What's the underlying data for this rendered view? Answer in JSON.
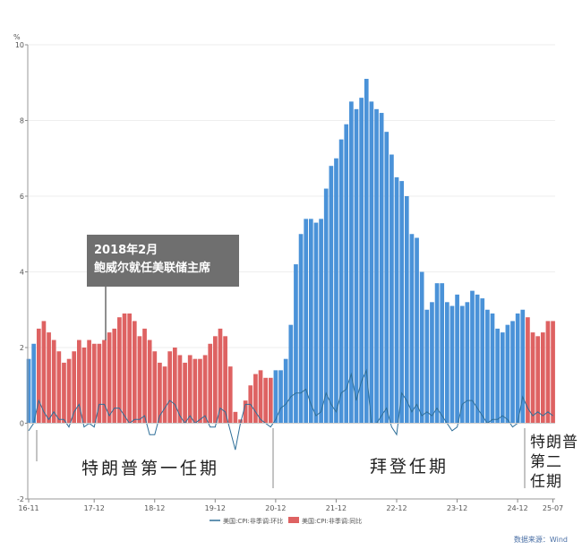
{
  "chart_data": {
    "type": "bar",
    "title": "",
    "ylabel": "%",
    "ylim": [
      -2,
      10
    ],
    "yticks": [
      -2,
      0,
      2,
      4,
      6,
      8,
      10
    ],
    "grid": true,
    "legend_placement": "bottom",
    "start_month": "2016-11",
    "x_tick_labels": [
      "16-11",
      "17-12",
      "18-12",
      "19-12",
      "20-12",
      "21-12",
      "22-12",
      "23-12",
      "24-12",
      "25-07"
    ],
    "x_tick_indices": [
      0,
      13,
      25,
      37,
      49,
      61,
      73,
      85,
      97,
      104
    ],
    "colors": {
      "biden": "#4a92d8",
      "trump": "#de6262",
      "line": "#2f6f99"
    },
    "series": [
      {
        "name": "美国:CPI:非季调:同比",
        "type": "bar",
        "values": [
          1.7,
          2.1,
          2.5,
          2.7,
          2.4,
          2.2,
          1.9,
          1.6,
          1.7,
          1.9,
          2.2,
          2.0,
          2.2,
          2.1,
          2.1,
          2.2,
          2.4,
          2.5,
          2.8,
          2.9,
          2.9,
          2.7,
          2.3,
          2.5,
          2.2,
          1.9,
          1.6,
          1.5,
          1.9,
          2.0,
          1.8,
          1.6,
          1.8,
          1.7,
          1.7,
          1.8,
          2.1,
          2.3,
          2.5,
          2.3,
          1.5,
          0.3,
          0.1,
          0.6,
          1.0,
          1.3,
          1.4,
          1.2,
          1.2,
          1.4,
          1.4,
          1.7,
          2.6,
          4.2,
          5.0,
          5.4,
          5.4,
          5.3,
          5.4,
          6.2,
          6.8,
          7.0,
          7.5,
          7.9,
          8.5,
          8.3,
          8.6,
          9.1,
          8.5,
          8.3,
          8.2,
          7.7,
          7.1,
          6.5,
          6.4,
          6.0,
          5.0,
          4.9,
          4.0,
          3.0,
          3.2,
          3.7,
          3.7,
          3.2,
          3.1,
          3.4,
          3.1,
          3.2,
          3.5,
          3.4,
          3.3,
          3.0,
          2.9,
          2.5,
          2.4,
          2.6,
          2.7,
          2.9,
          3.0,
          2.8,
          2.4,
          2.3,
          2.4,
          2.7,
          2.7
        ],
        "color_by_index": "blue for 2016-11..2016-12 and 2020-12..2025-01, red otherwise"
      },
      {
        "name": "美国:CPI:非季调:环比",
        "type": "line",
        "values": [
          -0.2,
          0.0,
          0.6,
          0.3,
          0.1,
          0.3,
          0.1,
          0.1,
          -0.1,
          0.3,
          0.5,
          -0.1,
          0.0,
          -0.1,
          0.5,
          0.5,
          0.2,
          0.4,
          0.4,
          0.2,
          0.0,
          0.1,
          0.1,
          0.2,
          -0.3,
          -0.3,
          0.2,
          0.4,
          0.6,
          0.5,
          0.2,
          0.0,
          0.2,
          0.0,
          0.1,
          0.2,
          -0.1,
          -0.1,
          0.4,
          0.3,
          -0.2,
          -0.7,
          0.0,
          0.5,
          0.5,
          0.3,
          0.1,
          0.0,
          -0.1,
          0.1,
          0.4,
          0.5,
          0.7,
          0.8,
          0.8,
          0.9,
          0.5,
          0.2,
          0.3,
          0.8,
          0.5,
          0.3,
          0.8,
          0.9,
          1.3,
          0.6,
          1.1,
          1.4,
          0.0,
          0.0,
          0.2,
          0.4,
          -0.1,
          -0.3,
          0.8,
          0.6,
          0.3,
          0.5,
          0.2,
          0.3,
          0.2,
          0.4,
          0.2,
          0.0,
          -0.2,
          -0.1,
          0.5,
          0.6,
          0.6,
          0.4,
          0.2,
          0.0,
          0.1,
          0.1,
          0.2,
          0.1,
          -0.1,
          0.0,
          0.7,
          0.4,
          0.2,
          0.3,
          0.2,
          0.3,
          0.2
        ]
      }
    ],
    "annotations": {
      "powell": {
        "line1": "2018年2月",
        "line2": "鲍威尔就任美联储主席"
      },
      "trump1": "特朗普第一任期",
      "biden": "拜登任期",
      "trump2": [
        "特朗普",
        "第二",
        "任期"
      ]
    },
    "source": "数据来源：Wind"
  }
}
